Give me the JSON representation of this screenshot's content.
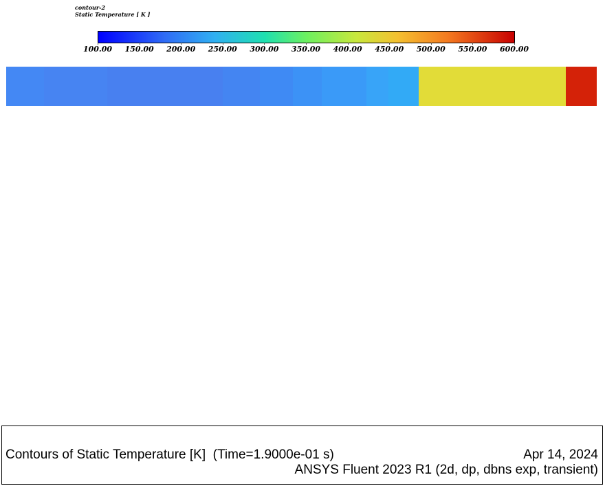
{
  "legend": {
    "name": "contour-2",
    "variable": "Static Temperature [ K ]",
    "ticks": [
      "100.00",
      "150.00",
      "200.00",
      "250.00",
      "300.00",
      "350.00",
      "400.00",
      "450.00",
      "500.00",
      "550.00",
      "600.00"
    ],
    "range": [
      100,
      600
    ]
  },
  "domain_bands": [
    {
      "color": "#4488f4",
      "weight": 55
    },
    {
      "color": "#4784f2",
      "weight": 92
    },
    {
      "color": "#4880f0",
      "weight": 168
    },
    {
      "color": "#4485f2",
      "weight": 54
    },
    {
      "color": "#3f8af4",
      "weight": 48
    },
    {
      "color": "#3c92f6",
      "weight": 42
    },
    {
      "color": "#3a9af8",
      "weight": 65
    },
    {
      "color": "#38a4f8",
      "weight": 32
    },
    {
      "color": "#32aaf6",
      "weight": 44
    },
    {
      "color": "#e2dc38",
      "weight": 214
    },
    {
      "color": "#d42208",
      "weight": 45
    }
  ],
  "footer": {
    "title": "Contours of Static Temperature [K]  (Time=1.9000e-01 s)",
    "date": "Apr 14, 2024",
    "solver": "ANSYS Fluent 2023 R1 (2d, dp, dbns exp, transient)"
  }
}
